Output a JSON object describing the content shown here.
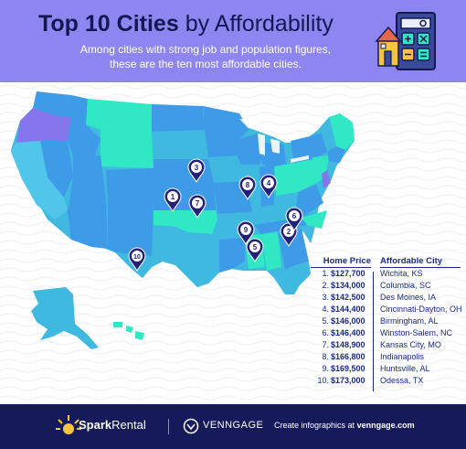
{
  "header": {
    "title_bold": "Top 10 Cities",
    "title_rest": "by Affordability",
    "subtitle_line1": "Among cities with strong job and population figures,",
    "subtitle_line2": "these are the ten most affordable cities.",
    "background_color": "#8e86f0",
    "title_color": "#141852"
  },
  "table": {
    "price_header": "Home Price",
    "city_header": "Affordable City",
    "rows": [
      {
        "rank": "1.",
        "price": "$127,700",
        "city": "Wichita, KS"
      },
      {
        "rank": "2.",
        "price": "$134,000",
        "city": "Columbia, SC"
      },
      {
        "rank": "3.",
        "price": "$142,500",
        "city": "Des Moines, IA"
      },
      {
        "rank": "4.",
        "price": "$144,400",
        "city": "Cincinnati-Dayton, OH"
      },
      {
        "rank": "5.",
        "price": "$146,000",
        "city": "Birmingham, AL"
      },
      {
        "rank": "6.",
        "price": "$146,400",
        "city": "Winston-Salem, NC"
      },
      {
        "rank": "7.",
        "price": "$148,900",
        "city": "Kansas City, MO"
      },
      {
        "rank": "8.",
        "price": "$166,800",
        "city": "Indianapolis"
      },
      {
        "rank": "9.",
        "price": "$169,500",
        "city": "Huntsville, AL"
      },
      {
        "rank": "10.",
        "price": "$173,000",
        "city": "Odessa, TX"
      }
    ]
  },
  "map": {
    "pins": [
      "1",
      "2",
      "3",
      "4",
      "5",
      "6",
      "7",
      "8",
      "9",
      "10"
    ],
    "pin_color": "#22207a",
    "colors": {
      "teal": "#31e8c4",
      "blue": "#3d9be8",
      "mid": "#3fb9e0",
      "purple": "#8576ee",
      "sky": "#52c6ea"
    }
  },
  "footer": {
    "brand_bold": "Spark",
    "brand_rest": "Rental",
    "venngage": "VENNGAGE",
    "create_text": "Create infographics at ",
    "create_link": "venngage.com",
    "background_color": "#151a5a"
  },
  "icons": [
    "calculator-house-icon",
    "spark-sun-icon",
    "venngage-logo-icon",
    "map-pin-icon"
  ]
}
